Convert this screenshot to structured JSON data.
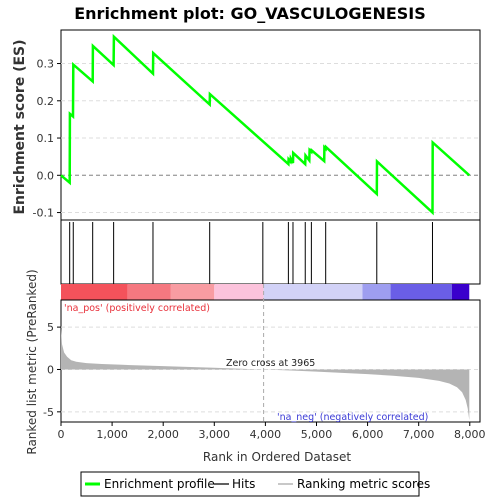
{
  "chart_data": {
    "type": "line",
    "title": "Enrichment plot: GO_VASCULOGENESIS",
    "es_panel": {
      "ylabel": "Enrichment score (ES)",
      "ylim": [
        -0.12,
        0.39
      ],
      "yticks": [
        "0.3",
        "0.2",
        "0.1",
        "0.0",
        "-0.1"
      ],
      "ytick_values": [
        0.3,
        0.2,
        0.1,
        0.0,
        -0.1
      ],
      "series": [
        {
          "name": "Enrichment profile",
          "color": "#00ff00",
          "x": [
            0,
            170,
            175,
            235,
            240,
            620,
            625,
            1030,
            1035,
            1800,
            1805,
            2910,
            2915,
            4450,
            4455,
            4490,
            4495,
            4540,
            4545,
            4780,
            4785,
            4860,
            4865,
            4900,
            4905,
            5150,
            5155,
            5180,
            5185,
            6180,
            6185,
            7270,
            7275,
            7990
          ],
          "y": [
            0.0,
            -0.02,
            0.165,
            0.158,
            0.297,
            0.252,
            0.347,
            0.296,
            0.372,
            0.273,
            0.328,
            0.19,
            0.218,
            0.03,
            0.043,
            0.037,
            0.045,
            0.033,
            0.06,
            0.03,
            0.053,
            0.04,
            0.068,
            0.063,
            0.067,
            0.038,
            0.075,
            0.071,
            0.076,
            -0.05,
            0.037,
            -0.1,
            0.088,
            0.0
          ]
        }
      ]
    },
    "hits": {
      "name": "Hits",
      "x": [
        170,
        240,
        620,
        1030,
        1800,
        2910,
        3950,
        4450,
        4540,
        4780,
        4900,
        5180,
        6180,
        7270
      ]
    },
    "heatmap_bar": {
      "segments": [
        {
          "from": 0,
          "to": 1300,
          "color": "#f4525b"
        },
        {
          "from": 1300,
          "to": 2150,
          "color": "#f57880"
        },
        {
          "from": 2150,
          "to": 3000,
          "color": "#f89ca2"
        },
        {
          "from": 3000,
          "to": 3965,
          "color": "#fcc3dc"
        },
        {
          "from": 3965,
          "to": 5900,
          "color": "#d2d2f7"
        },
        {
          "from": 5900,
          "to": 6450,
          "color": "#9e9ef0"
        },
        {
          "from": 6450,
          "to": 7650,
          "color": "#6a5ee6"
        },
        {
          "from": 7650,
          "to": 7990,
          "color": "#3a00cc"
        }
      ]
    },
    "metric_panel": {
      "ylabel": "Ranked list metric (PreRanked)",
      "ylim": [
        -6.2,
        8.2
      ],
      "yticks": [
        "5",
        "0",
        "-5"
      ],
      "ytick_values": [
        5,
        0,
        -5
      ],
      "fill_color": "#b4b4b4",
      "series": [
        {
          "name": "Ranking metric scores",
          "x": [
            0,
            20,
            60,
            120,
            200,
            300,
            500,
            800,
            1200,
            2000,
            3000,
            3965,
            4500,
            5000,
            6000,
            6500,
            7000,
            7400,
            7600,
            7750,
            7850,
            7920,
            7960,
            7990
          ],
          "y": [
            5.0,
            3.0,
            2.0,
            1.5,
            1.1,
            0.9,
            0.75,
            0.65,
            0.55,
            0.4,
            0.2,
            0.0,
            -0.12,
            -0.25,
            -0.55,
            -0.75,
            -1.0,
            -1.35,
            -1.65,
            -2.1,
            -2.7,
            -3.6,
            -4.6,
            -6.0
          ]
        }
      ],
      "pos_label": "'na_pos' (positively correlated)",
      "neg_label": "'na_neg' (negatively correlated)",
      "zero_cross_label": "Zero cross at 3965",
      "zero_cross_x": 3965
    },
    "x_axis": {
      "label": "Rank in Ordered Dataset",
      "xlim": [
        0,
        8200
      ],
      "ticks": [
        "0",
        "1,000",
        "2,000",
        "3,000",
        "4,000",
        "5,000",
        "6,000",
        "7,000",
        "8,000"
      ],
      "tick_values": [
        0,
        1000,
        2000,
        3000,
        4000,
        5000,
        6000,
        7000,
        8000
      ]
    },
    "legend": {
      "placement": "bottom",
      "entries": [
        {
          "label": "Enrichment profile",
          "color": "#00ff00"
        },
        {
          "label": "Hits",
          "color": "#606060"
        },
        {
          "label": "Ranking metric scores",
          "color": "#c8c8c8"
        }
      ]
    }
  }
}
